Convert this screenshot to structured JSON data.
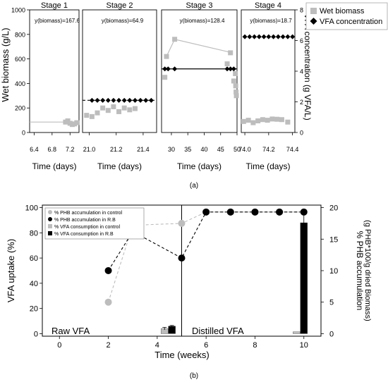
{
  "figure_a": {
    "caption": "(a)",
    "ylabel_left": "Wet biomass (g/L)",
    "ylabel_right": "VFA concentration (g VFA/L)",
    "yticks_left": [
      "0",
      "200",
      "400",
      "600",
      "800",
      "1000"
    ],
    "yticks_right": [
      "0",
      "2",
      "4",
      "6",
      "8"
    ],
    "legend": [
      {
        "label": "Wet biomass",
        "marker": "square",
        "color": "#bdbdbd"
      },
      {
        "label": "VFA concentration",
        "marker": "diamond",
        "color": "#000000"
      }
    ]
  },
  "chart_data": [
    {
      "type": "scatter",
      "title": "Stage 1",
      "xlabel": "Time (days)",
      "xticks": [
        "6.4",
        "6.8",
        "7.2"
      ],
      "xlim": [
        6.3,
        7.4
      ],
      "ylim": [
        0,
        1000
      ],
      "y2lim": [
        0,
        8
      ],
      "annotation": "y(biomass)=167.6",
      "biomass": {
        "x": [
          7.1,
          7.15,
          7.2,
          7.25,
          7.3,
          7.35
        ],
        "y": [
          85,
          95,
          75,
          65,
          70,
          80
        ]
      },
      "biomass_line": {
        "x": [
          6.3,
          7.1
        ],
        "y": [
          85,
          85
        ]
      },
      "vfa": {
        "x": [],
        "y": []
      },
      "vfa_line": null
    },
    {
      "type": "scatter",
      "title": "Stage 2",
      "xlabel": "Time (days)",
      "xticks": [
        "21.0",
        "21.2",
        "21.4"
      ],
      "xlim": [
        20.95,
        21.5
      ],
      "ylim": [
        0,
        1000
      ],
      "y2lim": [
        0,
        8
      ],
      "annotation": "y(biomass)=64.9",
      "biomass": {
        "x": [
          20.98,
          21.02,
          21.06,
          21.1,
          21.14,
          21.18,
          21.22,
          21.26,
          21.3,
          21.34
        ],
        "y": [
          140,
          130,
          160,
          200,
          180,
          210,
          170,
          200,
          185,
          195
        ]
      },
      "biomass_line": null,
      "vfa": {
        "x": [
          21.02,
          21.06,
          21.1,
          21.14,
          21.18,
          21.22,
          21.26,
          21.3,
          21.34,
          21.38,
          21.42,
          21.46
        ],
        "y": [
          2.1,
          2.1,
          2.1,
          2.1,
          2.1,
          2.1,
          2.1,
          2.1,
          2.1,
          2.1,
          2.1,
          2.1
        ]
      },
      "vfa_line": {
        "x": [
          20.95,
          21.5
        ],
        "y": [
          2.1,
          2.1
        ],
        "dashed": true
      }
    },
    {
      "type": "scatter",
      "title": "Stage 3",
      "xlabel": "Time (days)",
      "xticks": [
        "30",
        "35",
        "40",
        "45",
        "50"
      ],
      "xlim": [
        27,
        50
      ],
      "ylim": [
        0,
        1000
      ],
      "y2lim": [
        0,
        8
      ],
      "annotation": "y(biomass)=128.4",
      "biomass": {
        "x": [
          28,
          28.5,
          31,
          47,
          48,
          49,
          49.5,
          49.6,
          49.7,
          49.8
        ],
        "y": [
          450,
          620,
          760,
          560,
          650,
          420,
          480,
          380,
          330,
          300
        ]
      },
      "biomass_line": {
        "x": [
          28.5,
          31,
          47,
          48
        ],
        "y": [
          620,
          760,
          660,
          650
        ]
      },
      "vfa": {
        "x": [
          28,
          29,
          31,
          47,
          48,
          49
        ],
        "y": [
          4.15,
          4.15,
          4.15,
          4.15,
          4.15,
          4.15
        ]
      },
      "vfa_line": {
        "x": [
          27,
          50
        ],
        "y": [
          4.15,
          4.15
        ],
        "dashed": false
      }
    },
    {
      "type": "scatter",
      "title": "Stage 4",
      "xlabel": "Time (days)",
      "xticks": [
        "74.0",
        "74.2",
        "74.4"
      ],
      "xlim": [
        73.97,
        74.42
      ],
      "ylim": [
        0,
        1000
      ],
      "y2lim": [
        0,
        8
      ],
      "annotation": "y(biomass)=18.7",
      "biomass": {
        "x": [
          73.99,
          74.03,
          74.07,
          74.11,
          74.15,
          74.19,
          74.23,
          74.27,
          74.31,
          74.36
        ],
        "y": [
          90,
          100,
          80,
          95,
          105,
          100,
          110,
          108,
          105,
          85
        ]
      },
      "biomass_line": null,
      "vfa": {
        "x": [
          74.0,
          74.04,
          74.08,
          74.12,
          74.16,
          74.2,
          74.24,
          74.28,
          74.32,
          74.36,
          74.4
        ],
        "y": [
          6.25,
          6.25,
          6.25,
          6.25,
          6.25,
          6.25,
          6.25,
          6.25,
          6.25,
          6.25,
          6.25
        ]
      },
      "vfa_line": null
    },
    {
      "type": "line",
      "caption": "(b)",
      "xlabel": "Time (weeks)",
      "ylabel": "VFA uptake (%)",
      "y2label_line1": "% PHB accumulation",
      "y2label_line2": "(g PHB*100/g dried Biomass)",
      "xticks": [
        "0",
        "2",
        "4",
        "6",
        "8",
        "10"
      ],
      "yticks": [
        "0",
        "20",
        "40",
        "60",
        "80",
        "100"
      ],
      "y2ticks": [
        "0",
        "5",
        "10",
        "15",
        "20"
      ],
      "xlim": [
        -0.7,
        10.7
      ],
      "ylim": [
        -2,
        102
      ],
      "y2lim": [
        -0.4,
        20.4
      ],
      "legend": [
        "% PHB accumulation in control",
        "% PHB accumulation in R.B",
        "% VFA consumption in control",
        "% VFA consumption in R.B"
      ],
      "annotations": [
        "Raw VFA",
        "Distilled VFA"
      ],
      "phase_divider_x": 5,
      "series": [
        {
          "name": "% PHB accumulation in control",
          "axis": "right",
          "color": "#bdbdbd",
          "x": [
            2,
            3,
            5,
            6,
            7,
            8,
            9,
            10
          ],
          "y": [
            5,
            17.2,
            17.5,
            19.3,
            19.3,
            19.3,
            19.3,
            19.3
          ]
        },
        {
          "name": "% PHB accumulation in R.B",
          "axis": "right",
          "color": "#000000",
          "x": [
            2,
            3,
            5,
            6,
            7,
            8,
            9,
            10
          ],
          "y": [
            10,
            16.2,
            12,
            19.3,
            19.3,
            19.3,
            19.3,
            19.3
          ]
        }
      ],
      "bars": [
        {
          "name": "% VFA consumption in control",
          "color": "#bdbdbd",
          "x": [
            4.3,
            9.7
          ],
          "y": [
            4,
            1.5
          ],
          "err": [
            1,
            0
          ]
        },
        {
          "name": "% VFA consumption in R.B",
          "color": "#000000",
          "x": [
            4.6,
            10
          ],
          "y": [
            6,
            88
          ],
          "err": [
            0.5,
            8
          ]
        }
      ]
    }
  ]
}
